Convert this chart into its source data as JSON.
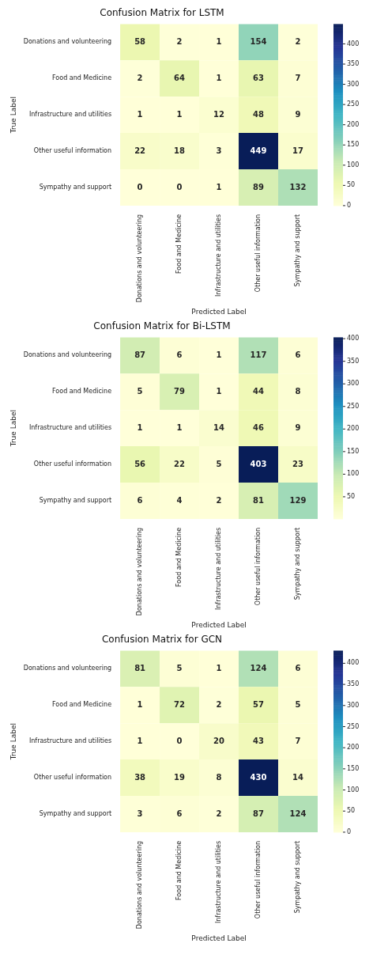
{
  "chart_data": [
    {
      "type": "heatmap",
      "title": "Confusion Matrix for LSTM",
      "xlabel": "Predicted Label",
      "ylabel": "True Label",
      "categories": [
        "Donations and volunteering",
        "Food and Medicine",
        "Infrastructure and utilities",
        "Other useful information",
        "Sympathy and support"
      ],
      "y_categories": [
        "Donations and volunteering",
        "Food and Medicine",
        "Infrastructure and utilities",
        "Other useful information",
        "Sympathy and support"
      ],
      "cells": [
        [
          58,
          2,
          1,
          154,
          2
        ],
        [
          2,
          64,
          1,
          63,
          7
        ],
        [
          1,
          1,
          12,
          48,
          9
        ],
        [
          22,
          18,
          3,
          449,
          17
        ],
        [
          0,
          0,
          1,
          89,
          132
        ]
      ],
      "clim": [
        0,
        449
      ],
      "cticks": [
        0,
        50,
        100,
        150,
        200,
        250,
        300,
        350,
        400
      ],
      "data_labels": true
    },
    {
      "type": "heatmap",
      "title": "Confusion Matrix for Bi-LSTM",
      "xlabel": "Predicted Label",
      "ylabel": "True Label",
      "categories": [
        "Donations and volunteering",
        "Food and Medicine",
        "Infrastructure and utilities",
        "Other useful information",
        "Sympathy and support"
      ],
      "y_categories": [
        "Donations and volunteering",
        "Food and Medicine",
        "Infrastructure and utilities",
        "Other useful information",
        "Sympathy and support"
      ],
      "cells": [
        [
          87,
          6,
          1,
          117,
          6
        ],
        [
          5,
          79,
          1,
          44,
          8
        ],
        [
          1,
          1,
          14,
          46,
          9
        ],
        [
          56,
          22,
          5,
          403,
          23
        ],
        [
          6,
          4,
          2,
          81,
          129
        ]
      ],
      "clim": [
        1,
        403
      ],
      "cticks": [
        50,
        100,
        150,
        200,
        250,
        300,
        350,
        400
      ],
      "data_labels": true
    },
    {
      "type": "heatmap",
      "title": "Confusion Matrix for GCN",
      "xlabel": "Predicted Label",
      "ylabel": "True Label",
      "categories": [
        "Donations and volunteering",
        "Food and Medicine",
        "Infrastructure and utilities",
        "Other useful information",
        "Sympathy and support"
      ],
      "y_categories": [
        "Donations and volunteering",
        "Food and Medicine",
        "Infrastructure and utilities",
        "Other useful information",
        "Sympathy and support"
      ],
      "cells": [
        [
          81,
          5,
          1,
          124,
          6
        ],
        [
          1,
          72,
          2,
          57,
          5
        ],
        [
          1,
          0,
          20,
          43,
          7
        ],
        [
          38,
          19,
          8,
          430,
          14
        ],
        [
          3,
          6,
          2,
          87,
          124
        ]
      ],
      "clim": [
        0,
        430
      ],
      "cticks": [
        0,
        50,
        100,
        150,
        200,
        250,
        300,
        350,
        400
      ],
      "data_labels": true
    }
  ]
}
